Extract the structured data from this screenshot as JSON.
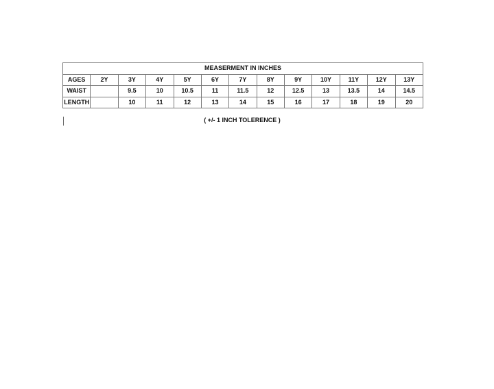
{
  "table": {
    "title": "MEASERMENT IN INCHES",
    "rows": [
      [
        "AGES",
        "2Y",
        "3Y",
        "4Y",
        "5Y",
        "6Y",
        "7Y",
        "8Y",
        "9Y",
        "10Y",
        "11Y",
        "12Y",
        "13Y"
      ],
      [
        "WAIST",
        "",
        "9.5",
        "10",
        "10.5",
        "11",
        "11.5",
        "12",
        "12.5",
        "13",
        "13.5",
        "14",
        "14.5"
      ],
      [
        "LENGTH",
        "",
        "10",
        "11",
        "12",
        "13",
        "14",
        "15",
        "16",
        "17",
        "18",
        "19",
        "20"
      ]
    ]
  },
  "note": "( +/-  1  INCH TOLERENCE )"
}
